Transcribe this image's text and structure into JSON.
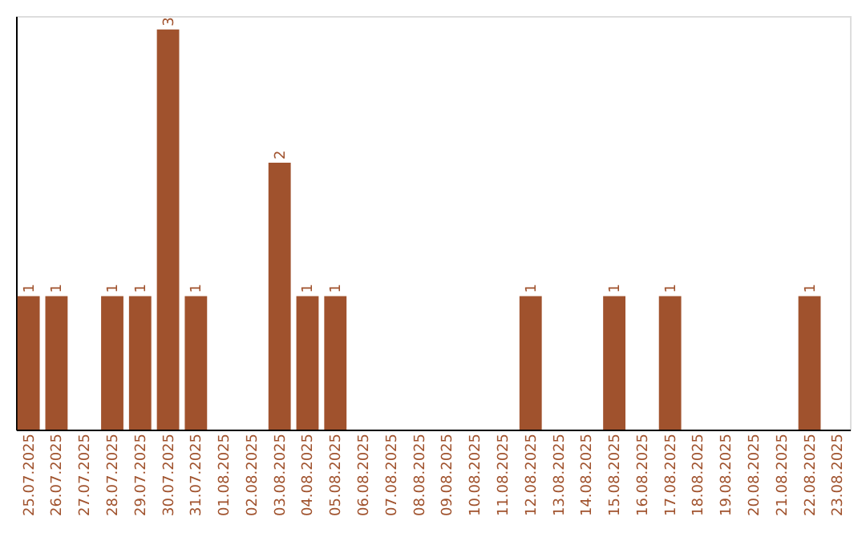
{
  "chart_data": {
    "type": "bar",
    "categories": [
      "25.07.2025",
      "26.07.2025",
      "27.07.2025",
      "28.07.2025",
      "29.07.2025",
      "30.07.2025",
      "31.07.2025",
      "01.08.2025",
      "02.08.2025",
      "03.08.2025",
      "04.08.2025",
      "05.08.2025",
      "06.08.2025",
      "07.08.2025",
      "08.08.2025",
      "09.08.2025",
      "10.08.2025",
      "11.08.2025",
      "12.08.2025",
      "13.08.2025",
      "14.08.2025",
      "15.08.2025",
      "16.08.2025",
      "17.08.2025",
      "18.08.2025",
      "19.08.2025",
      "20.08.2025",
      "21.08.2025",
      "22.08.2025",
      "23.08.2025"
    ],
    "values": [
      1,
      1,
      0,
      1,
      1,
      3,
      1,
      0,
      0,
      2,
      1,
      1,
      0,
      0,
      0,
      0,
      0,
      0,
      1,
      0,
      0,
      1,
      0,
      1,
      0,
      0,
      0,
      0,
      1,
      0
    ],
    "value_labels": [
      "1",
      "1",
      null,
      "1",
      "1",
      "3",
      "1",
      null,
      null,
      "2",
      "1",
      "1",
      null,
      null,
      null,
      null,
      null,
      null,
      "1",
      null,
      null,
      "1",
      null,
      "1",
      null,
      null,
      null,
      null,
      "1",
      null
    ],
    "color": "#a0522d",
    "ylim": [
      0,
      3.1
    ],
    "tick_labels": "x",
    "grid": false
  }
}
